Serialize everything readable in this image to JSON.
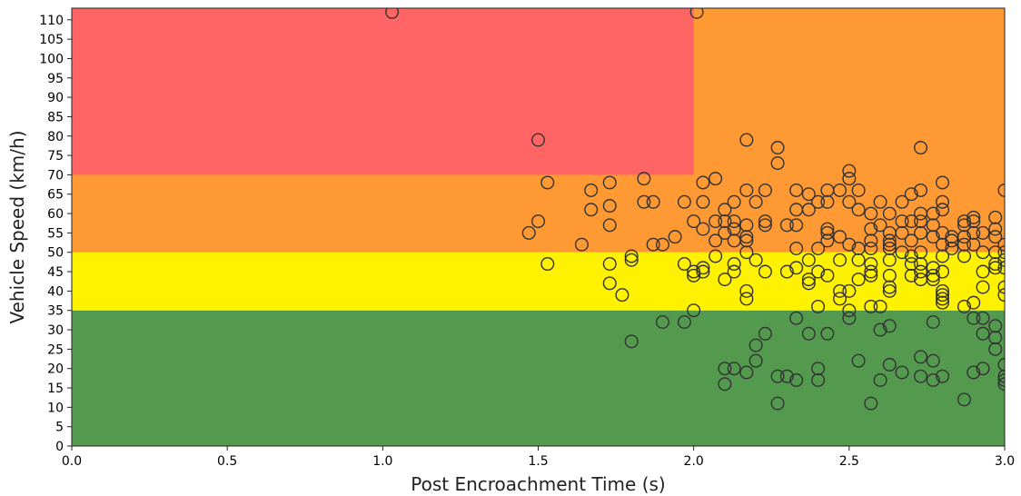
{
  "chart_data": {
    "type": "scatter",
    "xlabel": "Post Encroachment Time (s)",
    "ylabel": "Vehicle Speed (km/h)",
    "xlim": [
      0.0,
      3.0
    ],
    "ylim": [
      0,
      113
    ],
    "xticks": [
      0.0,
      0.5,
      1.0,
      1.5,
      2.0,
      2.5,
      3.0
    ],
    "xtick_labels": [
      "0.0",
      "0.5",
      "1.0",
      "1.5",
      "2.0",
      "2.5",
      "3.0"
    ],
    "yticks": [
      0,
      5,
      10,
      15,
      20,
      25,
      30,
      35,
      40,
      45,
      50,
      55,
      60,
      65,
      70,
      75,
      80,
      85,
      90,
      95,
      100,
      105,
      110
    ],
    "ytick_labels": [
      "0",
      "5",
      "10",
      "15",
      "20",
      "25",
      "30",
      "35",
      "40",
      "45",
      "50",
      "55",
      "60",
      "65",
      "70",
      "75",
      "80",
      "85",
      "90",
      "95",
      "100",
      "105",
      "110"
    ],
    "grid": false,
    "zones": [
      {
        "x0": 0.0,
        "x1": 3.0,
        "y0": 0,
        "y1": 35,
        "color": "#539a4f"
      },
      {
        "x0": 0.0,
        "x1": 3.0,
        "y0": 35,
        "y1": 50,
        "color": "#fff200"
      },
      {
        "x0": 0.0,
        "x1": 3.0,
        "y0": 50,
        "y1": 113,
        "color": "#ff9933"
      },
      {
        "x0": 0.0,
        "x1": 2.0,
        "y0": 70,
        "y1": 113,
        "color": "#ff6565"
      }
    ],
    "marker_edge_color": "#333333",
    "points": [
      [
        1.03,
        112
      ],
      [
        2.01,
        112
      ],
      [
        1.5,
        79
      ],
      [
        1.53,
        68
      ],
      [
        1.47,
        55
      ],
      [
        1.5,
        58
      ],
      [
        1.53,
        47
      ],
      [
        1.64,
        52
      ],
      [
        1.67,
        66
      ],
      [
        1.67,
        61
      ],
      [
        1.73,
        68
      ],
      [
        1.73,
        62
      ],
      [
        1.73,
        57
      ],
      [
        1.73,
        47
      ],
      [
        1.73,
        42
      ],
      [
        1.77,
        39
      ],
      [
        1.8,
        49
      ],
      [
        1.8,
        48
      ],
      [
        1.8,
        27
      ],
      [
        1.84,
        69
      ],
      [
        1.84,
        63
      ],
      [
        1.87,
        63
      ],
      [
        1.87,
        52
      ],
      [
        1.9,
        52
      ],
      [
        1.9,
        32
      ],
      [
        1.94,
        54
      ],
      [
        1.97,
        63
      ],
      [
        1.97,
        47
      ],
      [
        1.97,
        32
      ],
      [
        2.0,
        58
      ],
      [
        2.0,
        45
      ],
      [
        2.0,
        44
      ],
      [
        2.0,
        35
      ],
      [
        2.03,
        68
      ],
      [
        2.03,
        63
      ],
      [
        2.03,
        56
      ],
      [
        2.03,
        46
      ],
      [
        2.03,
        45
      ],
      [
        2.07,
        69
      ],
      [
        2.07,
        58
      ],
      [
        2.07,
        53
      ],
      [
        2.07,
        49
      ],
      [
        2.1,
        61
      ],
      [
        2.1,
        58
      ],
      [
        2.1,
        55
      ],
      [
        2.1,
        43
      ],
      [
        2.1,
        20
      ],
      [
        2.1,
        16
      ],
      [
        2.13,
        63
      ],
      [
        2.13,
        58
      ],
      [
        2.13,
        56
      ],
      [
        2.13,
        53
      ],
      [
        2.13,
        47
      ],
      [
        2.13,
        45
      ],
      [
        2.13,
        20
      ],
      [
        2.17,
        79
      ],
      [
        2.17,
        66
      ],
      [
        2.17,
        57
      ],
      [
        2.17,
        54
      ],
      [
        2.17,
        53
      ],
      [
        2.17,
        50
      ],
      [
        2.17,
        40
      ],
      [
        2.17,
        38
      ],
      [
        2.17,
        19
      ],
      [
        2.2,
        63
      ],
      [
        2.2,
        48
      ],
      [
        2.2,
        26
      ],
      [
        2.2,
        22
      ],
      [
        2.23,
        66
      ],
      [
        2.23,
        58
      ],
      [
        2.23,
        57
      ],
      [
        2.23,
        45
      ],
      [
        2.23,
        29
      ],
      [
        2.27,
        77
      ],
      [
        2.27,
        73
      ],
      [
        2.27,
        18
      ],
      [
        2.27,
        11
      ],
      [
        2.3,
        57
      ],
      [
        2.3,
        45
      ],
      [
        2.3,
        18
      ],
      [
        2.33,
        66
      ],
      [
        2.33,
        61
      ],
      [
        2.33,
        57
      ],
      [
        2.33,
        51
      ],
      [
        2.33,
        46
      ],
      [
        2.33,
        33
      ],
      [
        2.33,
        17
      ],
      [
        2.37,
        65
      ],
      [
        2.37,
        61
      ],
      [
        2.37,
        48
      ],
      [
        2.37,
        43
      ],
      [
        2.37,
        42
      ],
      [
        2.37,
        29
      ],
      [
        2.4,
        63
      ],
      [
        2.4,
        51
      ],
      [
        2.4,
        45
      ],
      [
        2.4,
        36
      ],
      [
        2.4,
        20
      ],
      [
        2.4,
        17
      ],
      [
        2.43,
        66
      ],
      [
        2.43,
        63
      ],
      [
        2.43,
        56
      ],
      [
        2.43,
        55
      ],
      [
        2.43,
        53
      ],
      [
        2.43,
        44
      ],
      [
        2.43,
        29
      ],
      [
        2.47,
        66
      ],
      [
        2.47,
        54
      ],
      [
        2.47,
        48
      ],
      [
        2.47,
        40
      ],
      [
        2.47,
        38
      ],
      [
        2.5,
        71
      ],
      [
        2.5,
        69
      ],
      [
        2.5,
        63
      ],
      [
        2.5,
        52
      ],
      [
        2.5,
        40
      ],
      [
        2.5,
        35
      ],
      [
        2.5,
        33
      ],
      [
        2.53,
        66
      ],
      [
        2.53,
        61
      ],
      [
        2.53,
        51
      ],
      [
        2.53,
        48
      ],
      [
        2.53,
        43
      ],
      [
        2.53,
        22
      ],
      [
        2.57,
        60
      ],
      [
        2.57,
        56
      ],
      [
        2.57,
        53
      ],
      [
        2.57,
        51
      ],
      [
        2.57,
        47
      ],
      [
        2.57,
        45
      ],
      [
        2.57,
        44
      ],
      [
        2.57,
        36
      ],
      [
        2.57,
        11
      ],
      [
        2.6,
        63
      ],
      [
        2.6,
        57
      ],
      [
        2.6,
        36
      ],
      [
        2.6,
        30
      ],
      [
        2.6,
        17
      ],
      [
        2.63,
        60
      ],
      [
        2.63,
        55
      ],
      [
        2.63,
        53
      ],
      [
        2.63,
        52
      ],
      [
        2.63,
        51
      ],
      [
        2.63,
        48
      ],
      [
        2.63,
        44
      ],
      [
        2.63,
        41
      ],
      [
        2.63,
        40
      ],
      [
        2.63,
        31
      ],
      [
        2.63,
        21
      ],
      [
        2.67,
        63
      ],
      [
        2.67,
        58
      ],
      [
        2.67,
        55
      ],
      [
        2.67,
        50
      ],
      [
        2.67,
        19
      ],
      [
        2.7,
        65
      ],
      [
        2.7,
        58
      ],
      [
        2.7,
        53
      ],
      [
        2.7,
        49
      ],
      [
        2.7,
        47
      ],
      [
        2.7,
        44
      ],
      [
        2.73,
        77
      ],
      [
        2.73,
        66
      ],
      [
        2.73,
        60
      ],
      [
        2.73,
        58
      ],
      [
        2.73,
        55
      ],
      [
        2.73,
        50
      ],
      [
        2.73,
        47
      ],
      [
        2.73,
        45
      ],
      [
        2.73,
        43
      ],
      [
        2.73,
        23
      ],
      [
        2.73,
        18
      ],
      [
        2.77,
        60
      ],
      [
        2.77,
        57
      ],
      [
        2.77,
        54
      ],
      [
        2.77,
        46
      ],
      [
        2.77,
        44
      ],
      [
        2.77,
        43
      ],
      [
        2.77,
        32
      ],
      [
        2.77,
        22
      ],
      [
        2.77,
        17
      ],
      [
        2.8,
        68
      ],
      [
        2.8,
        63
      ],
      [
        2.8,
        61
      ],
      [
        2.8,
        55
      ],
      [
        2.8,
        52
      ],
      [
        2.8,
        49
      ],
      [
        2.8,
        45
      ],
      [
        2.8,
        40
      ],
      [
        2.8,
        39
      ],
      [
        2.8,
        38
      ],
      [
        2.8,
        37
      ],
      [
        2.8,
        18
      ],
      [
        2.83,
        54
      ],
      [
        2.83,
        53
      ],
      [
        2.83,
        51
      ],
      [
        2.87,
        58
      ],
      [
        2.87,
        57
      ],
      [
        2.87,
        54
      ],
      [
        2.87,
        52
      ],
      [
        2.87,
        49
      ],
      [
        2.87,
        36
      ],
      [
        2.87,
        12
      ],
      [
        2.9,
        59
      ],
      [
        2.9,
        58
      ],
      [
        2.9,
        55
      ],
      [
        2.9,
        52
      ],
      [
        2.9,
        37
      ],
      [
        2.9,
        33
      ],
      [
        2.9,
        19
      ],
      [
        2.93,
        55
      ],
      [
        2.93,
        50
      ],
      [
        2.93,
        45
      ],
      [
        2.93,
        41
      ],
      [
        2.93,
        33
      ],
      [
        2.93,
        29
      ],
      [
        2.93,
        20
      ],
      [
        2.97,
        59
      ],
      [
        2.97,
        56
      ],
      [
        2.97,
        54
      ],
      [
        2.97,
        50
      ],
      [
        2.97,
        47
      ],
      [
        2.97,
        46
      ],
      [
        2.97,
        31
      ],
      [
        2.97,
        28
      ],
      [
        2.97,
        25
      ],
      [
        3.0,
        66
      ],
      [
        3.0,
        52
      ],
      [
        3.0,
        50
      ],
      [
        3.0,
        48
      ],
      [
        3.0,
        46
      ],
      [
        3.0,
        41
      ],
      [
        3.0,
        39
      ],
      [
        3.0,
        21
      ],
      [
        3.0,
        18
      ],
      [
        3.0,
        17
      ],
      [
        3.0,
        16
      ]
    ]
  }
}
